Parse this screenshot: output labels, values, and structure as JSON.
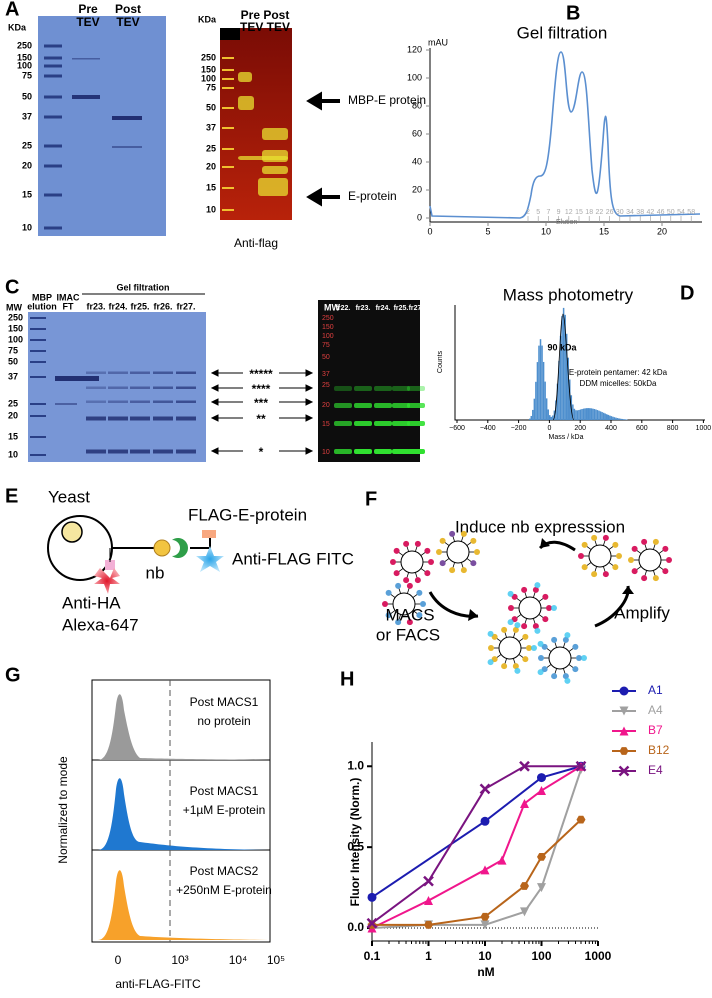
{
  "panels": {
    "A": {
      "label": "A",
      "gel": {
        "unit": "KDa",
        "ladder": [
          "250",
          "150",
          "100",
          "75",
          "50",
          "37",
          "25",
          "20",
          "15",
          "10"
        ],
        "pre": [
          "Pre",
          "TEV"
        ],
        "post": [
          "Post",
          "TEV"
        ]
      },
      "blot": {
        "unit": "KDa",
        "ladder": [
          "250",
          "150",
          "100",
          "75",
          "50",
          "37",
          "25",
          "20",
          "15",
          "10"
        ],
        "header": [
          "Pre Post",
          "TEV TEV"
        ],
        "arrow_top": "MBP-E protein",
        "arrow_bottom": "E-protein",
        "caption": "Anti-flag"
      }
    },
    "B": {
      "label": "B",
      "title": "Gel filtration",
      "unit": "mAU",
      "xticks": [
        "0",
        "5",
        "10",
        "15",
        "20"
      ],
      "yticks": [
        "0",
        "20",
        "40",
        "60",
        "80",
        "100",
        "120"
      ],
      "fractions": [
        "2",
        "5",
        "7",
        "9",
        "12",
        "15",
        "18",
        "22",
        "26",
        "30",
        "34",
        "38",
        "42",
        "46",
        "50",
        "54",
        "58"
      ],
      "elution": "Elution"
    },
    "C": {
      "label": "C",
      "gel": {
        "mw": "MW",
        "lanes": [
          [
            "MBP",
            "elution"
          ],
          [
            "IMAC",
            "FT"
          ]
        ],
        "group": "Gel filtration",
        "fractions": [
          "fr23.",
          "fr24.",
          "fr25.",
          "fr26.",
          "fr27."
        ],
        "ladder": [
          "250",
          "150",
          "100",
          "75",
          "50",
          "37",
          "25",
          "20",
          "15",
          "10"
        ]
      },
      "stars": [
        "*****",
        "****",
        "***",
        "**",
        "*"
      ],
      "blot": {
        "mw": "MW",
        "fractions": [
          "fr22.",
          "fr23.",
          "fr24.",
          "fr25.",
          "fr27."
        ],
        "ladder": [
          "250",
          "150",
          "100",
          "75",
          "50",
          "37",
          "25",
          "20",
          "15",
          "10"
        ]
      }
    },
    "D": {
      "label": "D",
      "title": "Mass photometry",
      "peak": "90 kDa",
      "notes": [
        "E-protein pentamer: 42 kDa",
        "DDM micelles: 50kDa"
      ],
      "ylabel": "Counts",
      "xlabel": "Mass / kDa",
      "xticks": [
        "−600",
        "−400",
        "−200",
        "0",
        "200",
        "400",
        "600",
        "800",
        "1000"
      ]
    },
    "E": {
      "label": "E",
      "yeast": "Yeast",
      "antigen": "FLAG-E-protein",
      "nb": "nb",
      "fitc": "Anti-FLAG FITC",
      "ha": "Anti-HA",
      "alexa": "Alexa-647"
    },
    "F": {
      "label": "F",
      "title": "Induce nb expresssion",
      "select": [
        "MACS",
        "or FACS"
      ],
      "amplify": "Amplify"
    },
    "G": {
      "label": "G",
      "ylabel": "Normalized to mode",
      "xlabel": "anti-FLAG-FITC",
      "xticks": [
        "0",
        "10³",
        "10⁴",
        "10⁵"
      ],
      "conditions": [
        [
          "Post MACS1",
          "no protein"
        ],
        [
          "Post MACS1",
          "+1µM E-protein"
        ],
        [
          "Post MACS2",
          "+250nM E-protein"
        ]
      ]
    },
    "H": {
      "label": "H",
      "chart": {
        "type": "scatter",
        "ylabel": "Fluor Intensity (Norm.)",
        "xlabel": "nM",
        "xlog": true,
        "xlim": [
          0.1,
          1000
        ],
        "xticks": [
          0.1,
          1,
          10,
          100,
          1000
        ],
        "ylim": [
          -0.08,
          1.15
        ],
        "yticks": [
          {
            "value": 0,
            "label": "0.0"
          },
          {
            "value": 0.5,
            "label": "0.5"
          },
          {
            "value": 1,
            "label": "1.0"
          }
        ],
        "series": [
          {
            "name": "A1",
            "color": "#1c1cb0",
            "marker": "circle",
            "x": [
              0.1,
              10,
              100,
              500
            ],
            "values": [
              0.19,
              0.66,
              0.93,
              1.0
            ]
          },
          {
            "name": "A4",
            "color": "#a0a0a0",
            "marker": "triangle-down",
            "x": [
              0.1,
              1,
              10,
              50,
              100,
              500
            ],
            "values": [
              0.0,
              0.02,
              0.02,
              0.1,
              0.25,
              0.98
            ]
          },
          {
            "name": "B7",
            "color": "#f0168c",
            "marker": "triangle-up",
            "x": [
              0.1,
              1,
              10,
              20,
              50,
              100,
              500
            ],
            "values": [
              0.0,
              0.17,
              0.36,
              0.42,
              0.77,
              0.85,
              1.0
            ]
          },
          {
            "name": "B12",
            "color": "#b8651b",
            "marker": "hexagon",
            "x": [
              0.1,
              1,
              10,
              50,
              100,
              500
            ],
            "values": [
              0.02,
              0.02,
              0.07,
              0.26,
              0.44,
              0.67
            ]
          },
          {
            "name": "E4",
            "color": "#7a1480",
            "marker": "cross",
            "x": [
              0.1,
              1,
              10,
              50,
              500
            ],
            "values": [
              0.03,
              0.29,
              0.86,
              1.0,
              1.0
            ]
          }
        ]
      }
    }
  }
}
